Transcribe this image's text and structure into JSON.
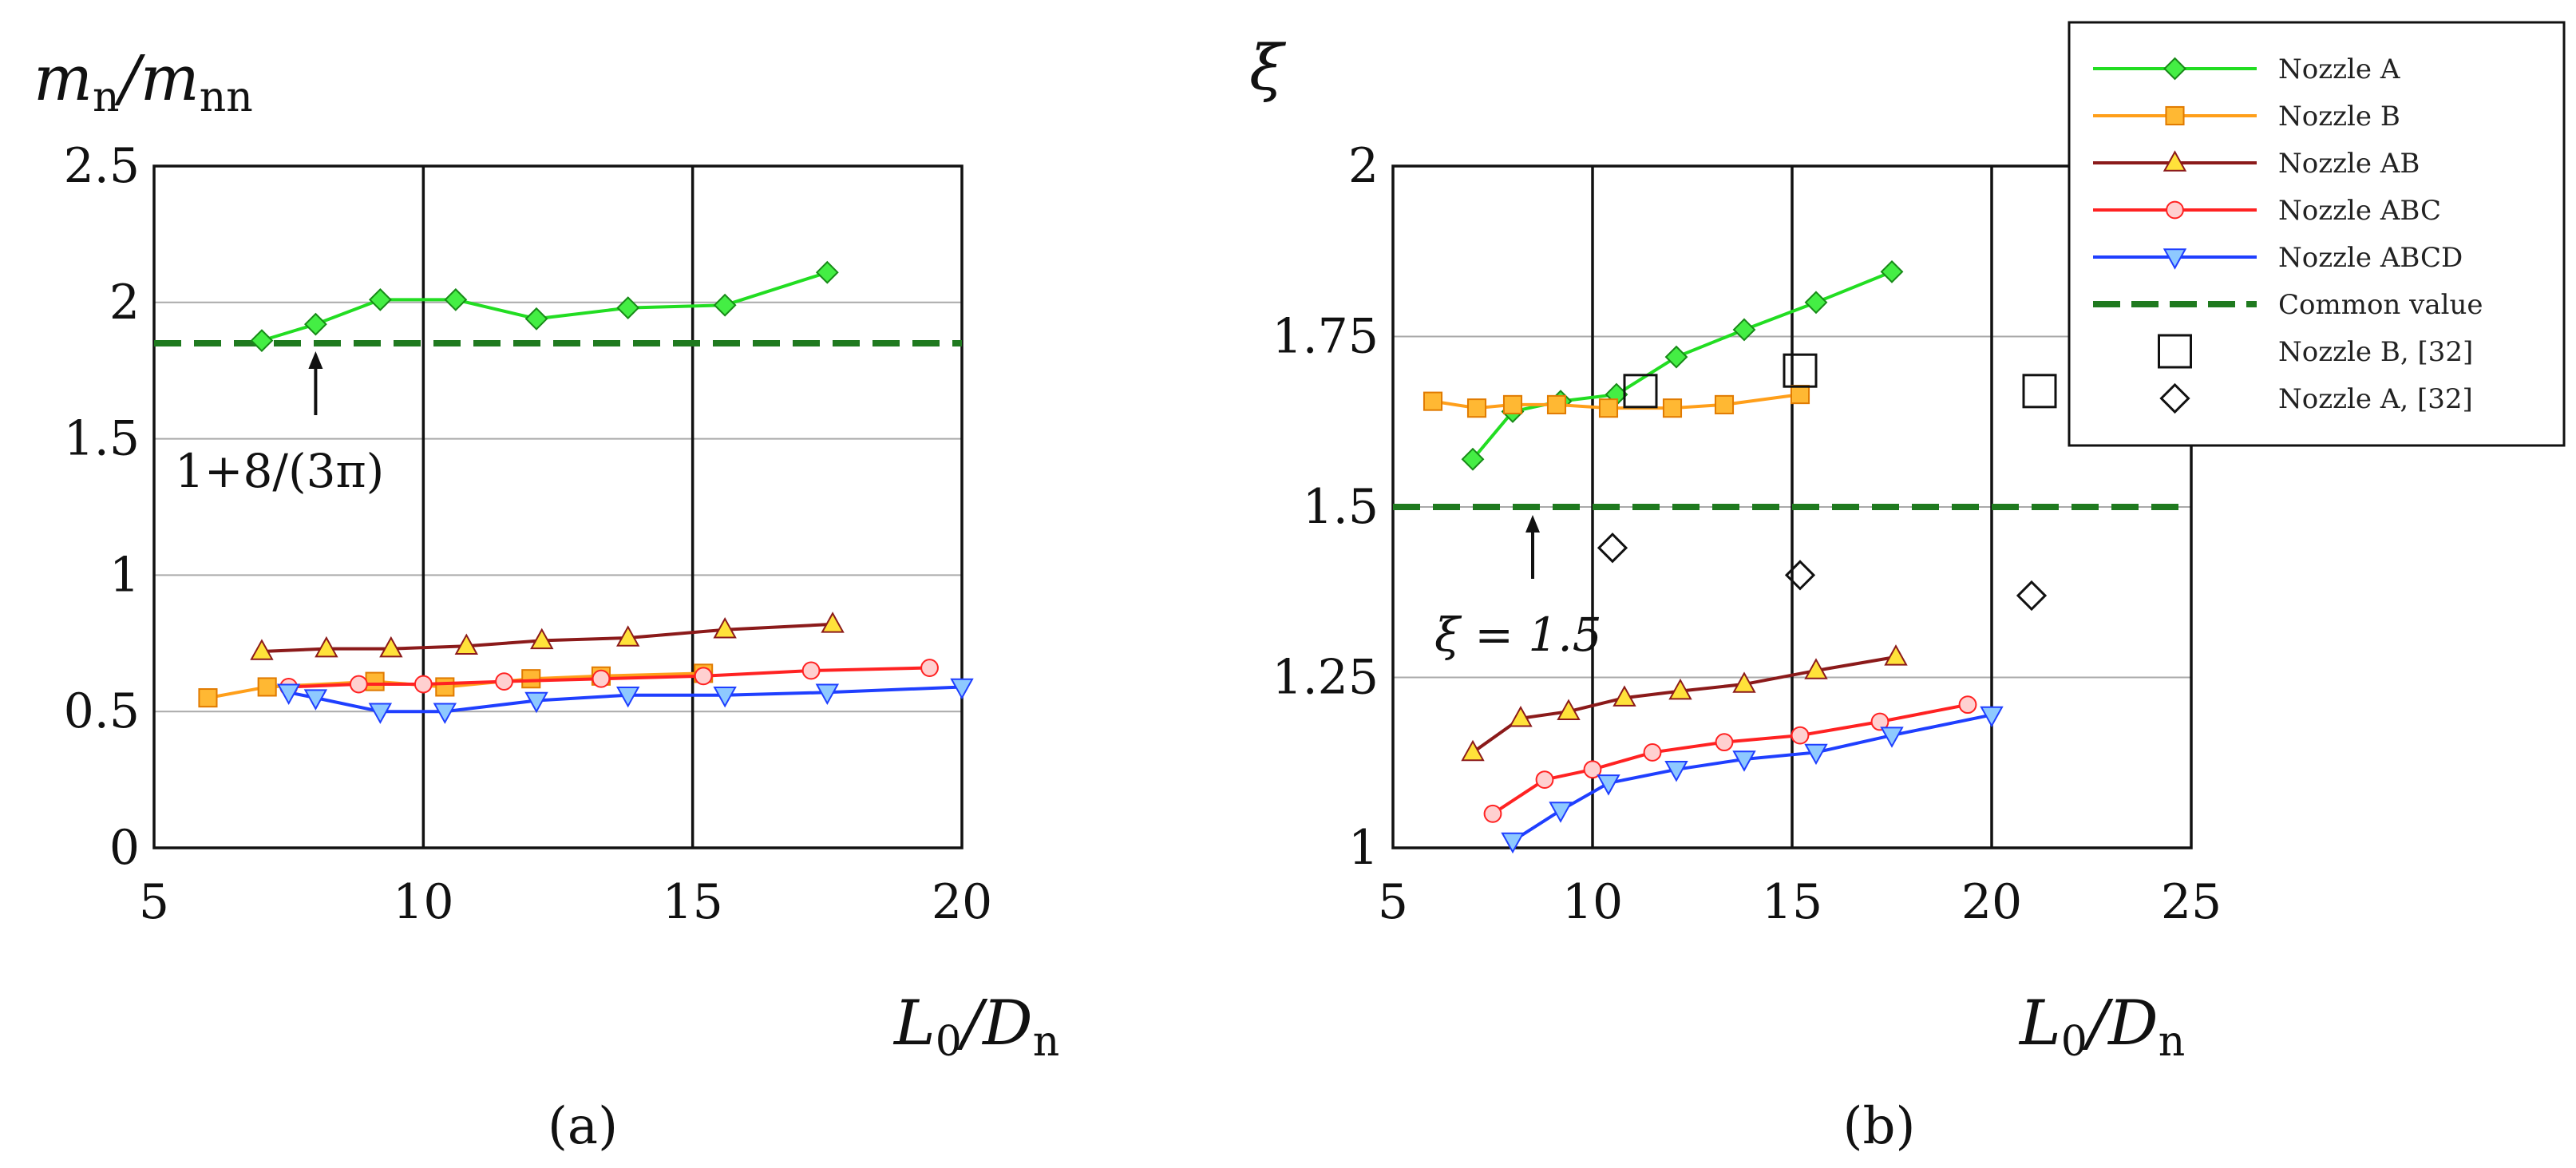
{
  "colors": {
    "nozzle_a": "#22dd22",
    "nozzle_b": "#ff9f1a",
    "nozzle_ab": "#8b1a1a",
    "nozzle_abc": "#ff2222",
    "nozzle_abcd": "#1f3fff",
    "common": "#1f7a1f",
    "marker_a_fill": "#44ee44",
    "marker_b_fill": "#ffb833",
    "marker_ab_fill": "#ffe23a",
    "marker_abc_fill": "#ffd0d0",
    "marker_abcd_fill": "#8ec9ff"
  },
  "chart_data": [
    {
      "type": "line",
      "panel": "(a)",
      "ylabel": "m_n/m_nn",
      "xlabel": "L0/Dn",
      "xlim": [
        5,
        20
      ],
      "ylim": [
        0,
        2.5
      ],
      "x_ticks": [
        "5",
        "10",
        "15",
        "20"
      ],
      "y_ticks": [
        "0",
        "0.5",
        "1",
        "1.5",
        "2",
        "2.5"
      ],
      "annotation": "1+8/(3π)",
      "annotation_x": 8,
      "common_value": 1.85,
      "series": [
        {
          "name": "Nozzle A",
          "key": "a",
          "marker": "diamond",
          "x": [
            7,
            8,
            9.2,
            10.6,
            12.1,
            13.8,
            15.6,
            17.5
          ],
          "y": [
            1.86,
            1.92,
            2.01,
            2.01,
            1.94,
            1.98,
            1.99,
            2.11
          ]
        },
        {
          "name": "Nozzle B",
          "key": "b",
          "marker": "square",
          "x": [
            6,
            7.1,
            9.1,
            10.4,
            12,
            13.3,
            15.2
          ],
          "y": [
            0.55,
            0.59,
            0.61,
            0.59,
            0.62,
            0.63,
            0.64
          ]
        },
        {
          "name": "Nozzle AB",
          "key": "ab",
          "marker": "triangle-up",
          "x": [
            7,
            8.2,
            9.4,
            10.8,
            12.2,
            13.8,
            15.6,
            17.6
          ],
          "y": [
            0.72,
            0.73,
            0.73,
            0.74,
            0.76,
            0.77,
            0.8,
            0.82
          ]
        },
        {
          "name": "Nozzle ABC",
          "key": "abc",
          "marker": "circle",
          "x": [
            7.5,
            8.8,
            10,
            11.5,
            13.3,
            15.2,
            17.2,
            19.4
          ],
          "y": [
            0.59,
            0.6,
            0.6,
            0.61,
            0.62,
            0.63,
            0.65,
            0.66
          ]
        },
        {
          "name": "Nozzle ABCD",
          "key": "abcd",
          "marker": "triangle-down",
          "x": [
            7.5,
            8,
            9.2,
            10.4,
            12.1,
            13.8,
            15.6,
            17.5,
            20
          ],
          "y": [
            0.57,
            0.55,
            0.5,
            0.5,
            0.54,
            0.56,
            0.56,
            0.57,
            0.59
          ]
        }
      ]
    },
    {
      "type": "line",
      "panel": "(b)",
      "ylabel": "ξ",
      "xlabel": "L0/Dn",
      "xlim": [
        5,
        25
      ],
      "ylim": [
        1,
        2
      ],
      "x_ticks": [
        "5",
        "10",
        "15",
        "20",
        "25"
      ],
      "y_ticks": [
        "1",
        "1.25",
        "1.5",
        "1.75",
        "2"
      ],
      "annotation": "ξ = 1.5",
      "annotation_x": 8.5,
      "common_value": 1.5,
      "series": [
        {
          "name": "Nozzle A",
          "key": "a",
          "marker": "diamond",
          "x": [
            7,
            8,
            9.2,
            10.6,
            12.1,
            13.8,
            15.6,
            17.5
          ],
          "y": [
            1.57,
            1.64,
            1.655,
            1.665,
            1.72,
            1.76,
            1.8,
            1.845
          ]
        },
        {
          "name": "Nozzle B",
          "key": "b",
          "marker": "square",
          "x": [
            6,
            7.1,
            8,
            9.1,
            10.4,
            12,
            13.3,
            15.2
          ],
          "y": [
            1.655,
            1.645,
            1.65,
            1.65,
            1.645,
            1.645,
            1.65,
            1.665
          ]
        },
        {
          "name": "Nozzle AB",
          "key": "ab",
          "marker": "triangle-up",
          "x": [
            7,
            8.2,
            9.4,
            10.8,
            12.2,
            13.8,
            15.6,
            17.6
          ],
          "y": [
            1.14,
            1.19,
            1.2,
            1.22,
            1.23,
            1.24,
            1.26,
            1.28
          ]
        },
        {
          "name": "Nozzle ABC",
          "key": "abc",
          "marker": "circle",
          "x": [
            7.5,
            8.8,
            10,
            11.5,
            13.3,
            15.2,
            17.2,
            19.4
          ],
          "y": [
            1.05,
            1.1,
            1.115,
            1.14,
            1.155,
            1.165,
            1.185,
            1.21
          ]
        },
        {
          "name": "Nozzle ABCD",
          "key": "abcd",
          "marker": "triangle-down",
          "x": [
            8,
            9.2,
            10.4,
            12.1,
            13.8,
            15.6,
            17.5,
            20
          ],
          "y": [
            1.01,
            1.055,
            1.095,
            1.115,
            1.13,
            1.14,
            1.165,
            1.195
          ]
        }
      ],
      "reference_points": [
        {
          "name": "Nozzle B, [32]",
          "marker": "open-square",
          "x": [
            11.2,
            15.2,
            21.2
          ],
          "y": [
            1.67,
            1.7,
            1.67
          ]
        },
        {
          "name": "Nozzle A, [32]",
          "marker": "open-diamond",
          "x": [
            10.5,
            15.2,
            21
          ],
          "y": [
            1.44,
            1.4,
            1.37
          ]
        }
      ]
    }
  ],
  "legend": {
    "entries": [
      {
        "label": "Nozzle A",
        "key": "a",
        "marker": "diamond"
      },
      {
        "label": "Nozzle B",
        "key": "b",
        "marker": "square"
      },
      {
        "label": "Nozzle AB",
        "key": "ab",
        "marker": "triangle-up"
      },
      {
        "label": "Nozzle ABC",
        "key": "abc",
        "marker": "circle"
      },
      {
        "label": "Nozzle ABCD",
        "key": "abcd",
        "marker": "triangle-down"
      },
      {
        "label": "Common value",
        "key": "common",
        "marker": "dashed"
      },
      {
        "label": "Nozzle B, [32]",
        "key": "ref_b",
        "marker": "open-square"
      },
      {
        "label": "Nozzle A, [32]",
        "key": "ref_a",
        "marker": "open-diamond"
      }
    ]
  },
  "labels": {
    "panel_a": "(a)",
    "panel_b": "(b)",
    "ylabel_a_m": "m",
    "ylabel_a_sub1": "n",
    "ylabel_a_slash": "/m",
    "ylabel_a_sub2": "nn",
    "ylabel_b": "ξ",
    "xlabel_L": "L",
    "xlabel_sub0": "0",
    "xlabel_slash": "/D",
    "xlabel_subn": "n"
  }
}
